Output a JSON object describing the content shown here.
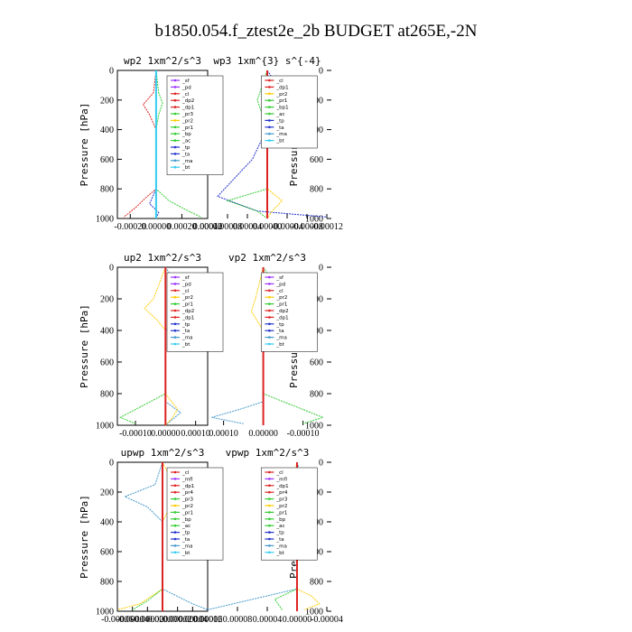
{
  "figure_title": "b1850.054.f_ztest2e_2b  BUDGET at265E,-2N",
  "ylabel": "Pressure [hPa]",
  "y_ticks": [
    0,
    200,
    400,
    600,
    800,
    1000
  ],
  "colors": {
    "sf": "#9933ff",
    "pd": "#9933ff",
    "mfl": "#9933ff",
    "cl": "#dd2222",
    "dp1": "#dd2222",
    "dp2": "#dd2222",
    "pr1": "#33cc33",
    "pr2": "#ffcc00",
    "pr3": "#33cc33",
    "pr4": "#dd2222",
    "bp": "#33cc33",
    "ac": "#33cc33",
    "tp": "#2233cc",
    "ta": "#2233cc",
    "ma": "#4499cc",
    "bt": "#33ccee"
  },
  "chart_data": [
    {
      "type": "line",
      "title": "wp2  1xm^2/s^3",
      "xlim": [
        -0.0003,
        0.0004
      ],
      "ylim": [
        1000,
        0
      ],
      "x_ticks": [
        -0.0002,
        0.0,
        0.0002,
        0.0004
      ],
      "x_tick_labels": [
        "-0.00020",
        "0.00000",
        "0.00020",
        "0.00040"
      ],
      "legend": [
        "_sf",
        "_pd",
        "_cl",
        "_dp2",
        "_dp1",
        "_pr3",
        "_pr2",
        "_pr1",
        "_bp",
        "_ac",
        "_tp",
        "_ta",
        "_ma",
        "_bt"
      ],
      "series": [
        {
          "name": "_dp1",
          "color": "#dd2222",
          "points": [
            [
              0,
              0
            ],
            [
              -2e-05,
              150
            ],
            [
              -0.0001,
              230
            ],
            [
              -5e-05,
              300
            ],
            [
              0,
              400
            ],
            [
              0,
              800
            ],
            [
              -8e-05,
              860
            ],
            [
              -0.00015,
              920
            ],
            [
              -0.00025,
              990
            ]
          ]
        },
        {
          "name": "_pr1",
          "color": "#33cc33",
          "points": [
            [
              0,
              0
            ],
            [
              2e-05,
              150
            ],
            [
              5e-05,
              220
            ],
            [
              2e-05,
              300
            ],
            [
              0,
              400
            ],
            [
              0,
              800
            ],
            [
              0.0001,
              880
            ],
            [
              0.00025,
              950
            ],
            [
              0.00035,
              990
            ]
          ]
        },
        {
          "name": "_tp",
          "color": "#2233cc",
          "points": [
            [
              0,
              0
            ],
            [
              0,
              800
            ],
            [
              -5e-05,
              900
            ],
            [
              2e-05,
              960
            ],
            [
              0,
              1000
            ]
          ]
        },
        {
          "name": "_bt",
          "color": "#33ccee",
          "points": [
            [
              0,
              0
            ],
            [
              0,
              1000
            ]
          ]
        }
      ]
    },
    {
      "type": "line",
      "title": "wp3  1xm^{3} s^{-4}",
      "xlim": [
        -0.00012,
        0.00012
      ],
      "ylim": [
        1000,
        0
      ],
      "x_ticks": [
        -0.00012,
        -8e-05,
        -4e-05,
        0.0,
        4e-05,
        8e-05,
        0.00012
      ],
      "x_tick_labels": [
        "-0.00012",
        "-0.00008",
        "-0.00004",
        "0.00000",
        "0.00004",
        "0.00008",
        "0.00012"
      ],
      "legend": [
        "_cl",
        "_dp1",
        "_pr2",
        "_pr1",
        "_bp1",
        "_ac",
        "_tp",
        "_ta",
        "_ma",
        "_bt"
      ],
      "series": [
        {
          "name": "_tp",
          "color": "#2233cc",
          "points": [
            [
              0,
              0
            ],
            [
              -3e-05,
              150
            ],
            [
              -2e-05,
              250
            ],
            [
              3e-05,
              600
            ],
            [
              0.0001,
              850
            ],
            [
              2e-05,
              950
            ],
            [
              -0.00012,
              990
            ]
          ]
        },
        {
          "name": "_ac",
          "color": "#33cc33",
          "points": [
            [
              0,
              0
            ],
            [
              2e-05,
              200
            ],
            [
              0,
              400
            ],
            [
              0,
              800
            ],
            [
              8e-05,
              880
            ],
            [
              2e-05,
              950
            ],
            [
              0,
              1000
            ]
          ]
        },
        {
          "name": "_pr2",
          "color": "#ffcc00",
          "points": [
            [
              0,
              0
            ],
            [
              0,
              800
            ],
            [
              -3e-05,
              880
            ],
            [
              -1e-05,
              950
            ],
            [
              0,
              1000
            ]
          ]
        },
        {
          "name": "_dp1",
          "color": "#dd2222",
          "points": [
            [
              0,
              0
            ],
            [
              0,
              1000
            ]
          ]
        }
      ]
    },
    {
      "type": "line",
      "title": "up2  1xm^2/s^3",
      "xlim": [
        -0.00016,
        0.00014
      ],
      "ylim": [
        1000,
        0
      ],
      "x_ticks": [
        -0.0001,
        0.0,
        0.0001
      ],
      "x_tick_labels": [
        "-0.00010",
        "0.00000",
        "0.00010"
      ],
      "legend": [
        "_sf",
        "_pd",
        "_cl",
        "_pr2",
        "_pr1",
        "_dp2",
        "_dp1",
        "_tp",
        "_ta",
        "_ma",
        "_bt"
      ],
      "series": [
        {
          "name": "_ma",
          "color": "#4499cc",
          "points": [
            [
              0,
              0
            ],
            [
              5e-05,
              150
            ],
            [
              0.00013,
              240
            ],
            [
              5e-05,
              330
            ],
            [
              0,
              400
            ],
            [
              0,
              850
            ],
            [
              5e-05,
              920
            ],
            [
              0,
              1000
            ]
          ]
        },
        {
          "name": "_pr2",
          "color": "#ffcc00",
          "points": [
            [
              0,
              0
            ],
            [
              -4e-05,
              200
            ],
            [
              -7e-05,
              260
            ],
            [
              -3e-05,
              330
            ],
            [
              0,
              400
            ],
            [
              0,
              800
            ],
            [
              4e-05,
              900
            ],
            [
              2e-05,
              960
            ],
            [
              0,
              1000
            ]
          ]
        },
        {
          "name": "_dp1",
          "color": "#33cc33",
          "points": [
            [
              0,
              0
            ],
            [
              0,
              800
            ],
            [
              -5e-05,
              850
            ],
            [
              -0.00015,
              950
            ],
            [
              -0.0001,
              990
            ]
          ]
        },
        {
          "name": "_bt",
          "color": "#dd2222",
          "points": [
            [
              0,
              0
            ],
            [
              0,
              1000
            ]
          ]
        }
      ]
    },
    {
      "type": "line",
      "title": "vp2  1xm^2/s^3",
      "xlim": [
        -0.00016,
        0.00014
      ],
      "ylim": [
        1000,
        0
      ],
      "x_ticks": [
        -0.0001,
        0.0,
        0.0001
      ],
      "x_tick_labels": [
        "-0.00010",
        "0.00000",
        "0.00010"
      ],
      "legend": [
        "_sf",
        "_pd",
        "_cl",
        "_pr2",
        "_pr1",
        "_dp2",
        "_dp1",
        "_tp",
        "_ta",
        "_ma",
        "_bt"
      ],
      "series": [
        {
          "name": "_dp1",
          "color": "#33cc33",
          "points": [
            [
              0,
              0
            ],
            [
              -4e-05,
              150
            ],
            [
              -0.00012,
              250
            ],
            [
              -5e-05,
              350
            ],
            [
              0,
              420
            ],
            [
              0,
              800
            ],
            [
              -5e-05,
              850
            ],
            [
              -0.00015,
              950
            ],
            [
              -0.0001,
              990
            ]
          ]
        },
        {
          "name": "_ma",
          "color": "#4499cc",
          "points": [
            [
              0,
              0
            ],
            [
              0,
              850
            ],
            [
              6e-05,
              900
            ],
            [
              0.00013,
              950
            ],
            [
              5e-05,
              990
            ]
          ]
        },
        {
          "name": "_pr2",
          "color": "#ffcc00",
          "points": [
            [
              0,
              0
            ],
            [
              2e-05,
              200
            ],
            [
              3e-05,
              280
            ],
            [
              0,
              400
            ],
            [
              0,
              1000
            ]
          ]
        },
        {
          "name": "_bt",
          "color": "#dd2222",
          "points": [
            [
              0,
              0
            ],
            [
              0,
              1000
            ]
          ]
        }
      ]
    },
    {
      "type": "line",
      "title": "upwp  1xm^2/s^3",
      "xlim": [
        -6e-05,
        6e-05
      ],
      "ylim": [
        1000,
        0
      ],
      "x_ticks": [
        -6e-05,
        -4e-05,
        -2e-05,
        0.0,
        2e-05,
        4e-05,
        6e-05
      ],
      "x_tick_labels": [
        "-0.00006",
        "-0.00004",
        "-0.00002",
        "0.00000",
        "0.00002",
        "0.00004",
        "0.00006"
      ],
      "legend": [
        "_cl",
        "_mfl",
        "_dp1",
        "_pr4",
        "_pr3",
        "_pr2",
        "_pr1",
        "_bp",
        "_ac",
        "_tp",
        "_ta",
        "_ma",
        "_bt"
      ],
      "series": [
        {
          "name": "_ma",
          "color": "#4499cc",
          "points": [
            [
              0,
              0
            ],
            [
              -1e-05,
              150
            ],
            [
              -5e-05,
              230
            ],
            [
              -2e-05,
              300
            ],
            [
              0,
              400
            ],
            [
              0,
              850
            ],
            [
              4e-05,
              950
            ],
            [
              6e-05,
              990
            ]
          ]
        },
        {
          "name": "_pr2",
          "color": "#ffcc00",
          "points": [
            [
              0,
              0
            ],
            [
              2e-05,
              200
            ],
            [
              1e-05,
              300
            ],
            [
              0,
              400
            ],
            [
              0,
              850
            ],
            [
              -3e-05,
              950
            ],
            [
              -6e-05,
              990
            ]
          ]
        },
        {
          "name": "_ac",
          "color": "#33cc33",
          "points": [
            [
              0,
              0
            ],
            [
              0,
              850
            ],
            [
              -2e-05,
              930
            ],
            [
              -4e-05,
              990
            ]
          ]
        },
        {
          "name": "_bt",
          "color": "#dd2222",
          "points": [
            [
              0,
              0
            ],
            [
              0,
              1000
            ]
          ]
        }
      ]
    },
    {
      "type": "line",
      "title": "vpwp  1xm^2/s^3",
      "xlim": [
        -4e-05,
        0.00012
      ],
      "ylim": [
        1000,
        0
      ],
      "x_ticks": [
        -4e-05,
        0.0,
        4e-05,
        8e-05,
        0.00012
      ],
      "x_tick_labels": [
        "-0.00004",
        "0.00000",
        "0.00004",
        "0.00008",
        "0.00012"
      ],
      "legend": [
        "_cl",
        "_mfl",
        "_dp1",
        "_pr4",
        "_pr3",
        "_pr2",
        "_pr1",
        "_bp",
        "_ac",
        "_tp",
        "_ta",
        "_ma",
        "_bt"
      ],
      "series": [
        {
          "name": "_ma",
          "color": "#4499cc",
          "points": [
            [
              0,
              0
            ],
            [
              -1e-05,
              150
            ],
            [
              -2e-05,
              200
            ],
            [
              0,
              400
            ],
            [
              0,
              850
            ],
            [
              6e-05,
              920
            ],
            [
              0.00012,
              990
            ]
          ]
        },
        {
          "name": "_pr2",
          "color": "#ffcc00",
          "points": [
            [
              0,
              0
            ],
            [
              1e-05,
              200
            ],
            [
              0,
              400
            ],
            [
              0,
              850
            ],
            [
              -2e-05,
              900
            ],
            [
              -3e-05,
              950
            ],
            [
              -1e-05,
              990
            ]
          ]
        },
        {
          "name": "_ac",
          "color": "#33cc33",
          "points": [
            [
              0,
              0
            ],
            [
              0,
              850
            ],
            [
              3e-05,
              920
            ],
            [
              2e-05,
              990
            ]
          ]
        },
        {
          "name": "_bt",
          "color": "#dd2222",
          "points": [
            [
              0,
              0
            ],
            [
              0,
              1000
            ]
          ]
        }
      ]
    }
  ]
}
